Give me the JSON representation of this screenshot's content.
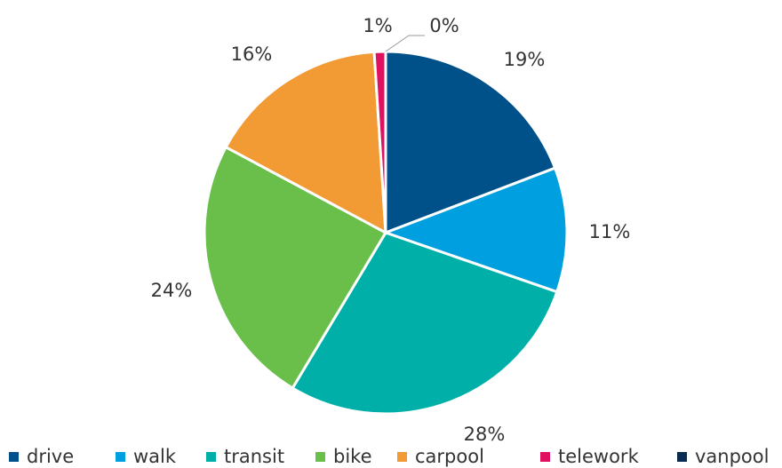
{
  "chart_data": {
    "type": "pie",
    "categories": [
      "drive",
      "walk",
      "transit",
      "bike",
      "carpool",
      "telework",
      "vanpool"
    ],
    "values": [
      19,
      11,
      28,
      24,
      16,
      1,
      0
    ],
    "value_labels": [
      "19%",
      "11%",
      "28%",
      "24%",
      "16%",
      "1%",
      "0%"
    ],
    "colors": [
      "#00508a",
      "#00a0e0",
      "#00b0a8",
      "#6abf4b",
      "#f29b34",
      "#e0115f",
      "#0a2d4f"
    ],
    "legend": "bottom"
  }
}
